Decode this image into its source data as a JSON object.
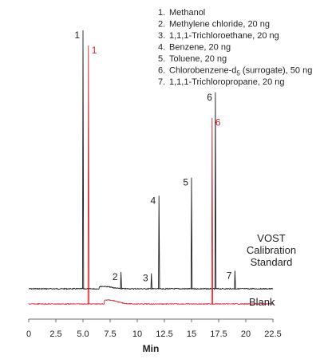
{
  "chart_data": {
    "type": "line",
    "xlabel": "Min",
    "xlim": [
      0,
      22.5
    ],
    "x_ticks": [
      "0",
      "2.5",
      "5.0",
      "7.5",
      "10",
      "12.5",
      "15",
      "17.5",
      "20",
      "22.5"
    ],
    "x_tick_values": [
      0,
      2.5,
      5.0,
      7.5,
      10,
      12.5,
      15,
      17.5,
      20,
      22.5
    ],
    "legend_items": [
      {
        "num": "1.",
        "text": "Methanol"
      },
      {
        "num": "2.",
        "text": "Methylene chloride, 20 ng"
      },
      {
        "num": "3.",
        "text": "1,1,1-Trichloroethane, 20 ng"
      },
      {
        "num": "4.",
        "text": "Benzene, 20 ng"
      },
      {
        "num": "5.",
        "text": "Toluene, 20 ng"
      },
      {
        "num": "6.",
        "text": "Chlorobenzene-d",
        "sub": "5",
        "tail": " (surrogate), 50 ng"
      },
      {
        "num": "7.",
        "text": "1,1,1-Trichloropropane, 20 ng"
      }
    ],
    "annotation": [
      "VOST",
      "Calibration",
      "Standard"
    ],
    "series": [
      {
        "name": "",
        "color": "#231f20",
        "baseline": 0.05,
        "peaks": [
          {
            "label": "1",
            "x": 5.0,
            "height": 1.0
          },
          {
            "label": "2",
            "x": 8.5,
            "height": 0.065
          },
          {
            "label": "3",
            "x": 11.3,
            "height": 0.06
          },
          {
            "label": "4",
            "x": 12.0,
            "height": 0.36
          },
          {
            "label": "5",
            "x": 15.0,
            "height": 0.43
          },
          {
            "label": "6",
            "x": 17.2,
            "height": 0.76
          },
          {
            "label": "7",
            "x": 19.0,
            "height": 0.07
          }
        ]
      },
      {
        "name": "Blank",
        "color": "#d7282f",
        "baseline": 0,
        "peaks": [
          {
            "label": "1",
            "x": 5.5,
            "height": 1.0
          },
          {
            "label": "6",
            "x": 16.9,
            "height": 0.72
          }
        ]
      }
    ]
  },
  "colors": {
    "black": "#231f20",
    "red": "#d7282f",
    "axis": "#6d6e71"
  }
}
